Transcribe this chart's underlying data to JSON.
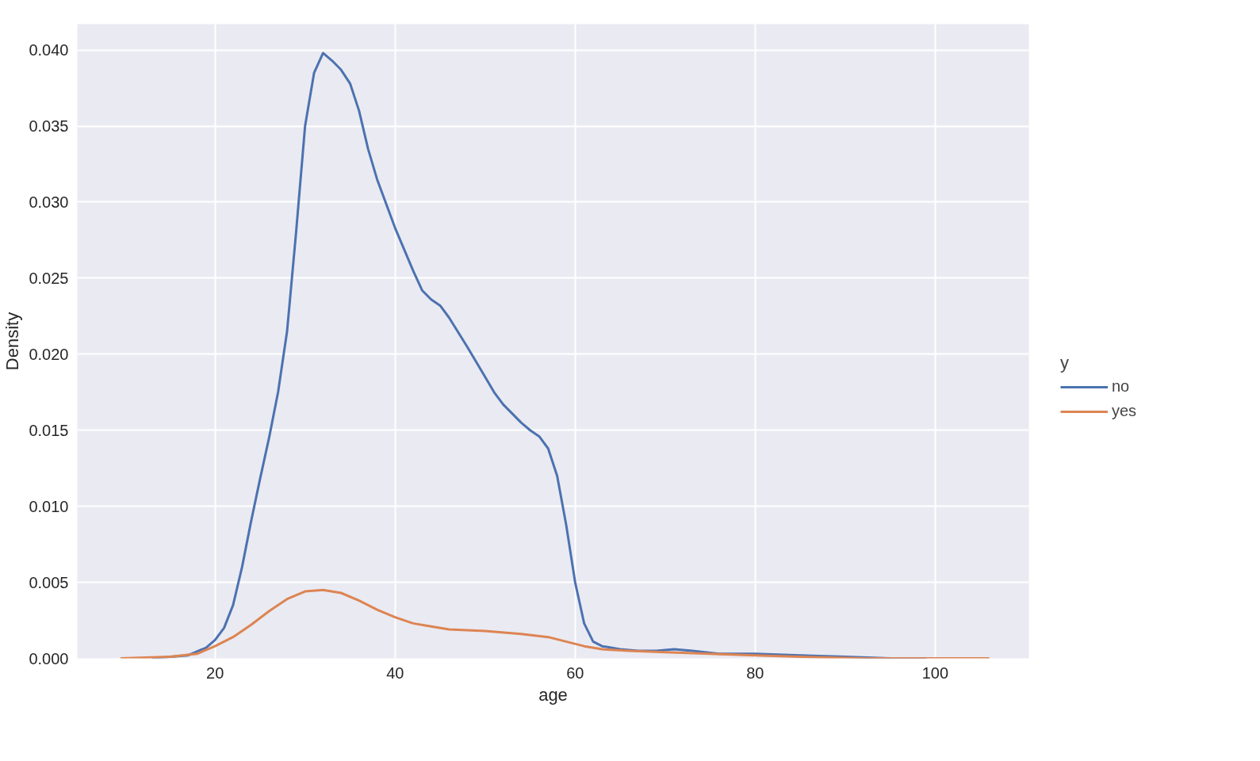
{
  "chart_data": {
    "type": "line",
    "xlabel": "age",
    "ylabel": "Density",
    "legend_title": "y",
    "legend": "right",
    "grid": true,
    "xlim": [
      4.7,
      110.4
    ],
    "ylim": [
      0,
      0.0417
    ],
    "xticks": [
      20,
      40,
      60,
      80,
      100
    ],
    "yticks": [
      {
        "value": 0,
        "label": "0.000"
      },
      {
        "value": 0.005,
        "label": "0.005"
      },
      {
        "value": 0.01,
        "label": "0.010"
      },
      {
        "value": 0.015,
        "label": "0.015"
      },
      {
        "value": 0.02,
        "label": "0.020"
      },
      {
        "value": 0.025,
        "label": "0.025"
      },
      {
        "value": 0.03,
        "label": "0.030"
      },
      {
        "value": 0.035,
        "label": "0.035"
      },
      {
        "value": 0.04,
        "label": "0.040"
      }
    ],
    "series": [
      {
        "name": "no",
        "color": "#4c72b0",
        "x": [
          13,
          17,
          19,
          20,
          21,
          22,
          23,
          24,
          25,
          26,
          27,
          28,
          29,
          30,
          31,
          32,
          33,
          34,
          35,
          36,
          37,
          38,
          40,
          42,
          43,
          44,
          45,
          46,
          48,
          50,
          51,
          52,
          54,
          55,
          56,
          57,
          58,
          59,
          60,
          61,
          62,
          63,
          65,
          67,
          69,
          71,
          73,
          76,
          80,
          85,
          90,
          95,
          99
        ],
        "values": [
          0,
          0.0002,
          0.0007,
          0.0012,
          0.002,
          0.0035,
          0.006,
          0.009,
          0.0118,
          0.0145,
          0.0175,
          0.0215,
          0.028,
          0.035,
          0.0385,
          0.0398,
          0.0393,
          0.0387,
          0.0378,
          0.036,
          0.0335,
          0.0315,
          0.0283,
          0.0255,
          0.0242,
          0.0236,
          0.0232,
          0.0224,
          0.0205,
          0.0185,
          0.0175,
          0.0167,
          0.0155,
          0.015,
          0.0146,
          0.0138,
          0.012,
          0.0088,
          0.005,
          0.0023,
          0.0011,
          0.0008,
          0.0006,
          0.0005,
          0.0005,
          0.0006,
          0.0005,
          0.0003,
          0.0003,
          0.0002,
          0.0001,
          0,
          0
        ]
      },
      {
        "name": "yes",
        "color": "#dd8452",
        "x": [
          9.5,
          15,
          18,
          20,
          22,
          24,
          26,
          28,
          30,
          32,
          34,
          36,
          38,
          40,
          42,
          44,
          46,
          50,
          54,
          57,
          59,
          61,
          63,
          66,
          70,
          75,
          80,
          85,
          92,
          106
        ],
        "values": [
          0,
          0.0001,
          0.0003,
          0.0008,
          0.0014,
          0.0022,
          0.0031,
          0.0039,
          0.0044,
          0.0045,
          0.0043,
          0.0038,
          0.0032,
          0.0027,
          0.0023,
          0.0021,
          0.0019,
          0.0018,
          0.0016,
          0.0014,
          0.0011,
          0.0008,
          0.0006,
          0.0005,
          0.0004,
          0.0003,
          0.0002,
          0.0001,
          0,
          0
        ]
      }
    ]
  }
}
